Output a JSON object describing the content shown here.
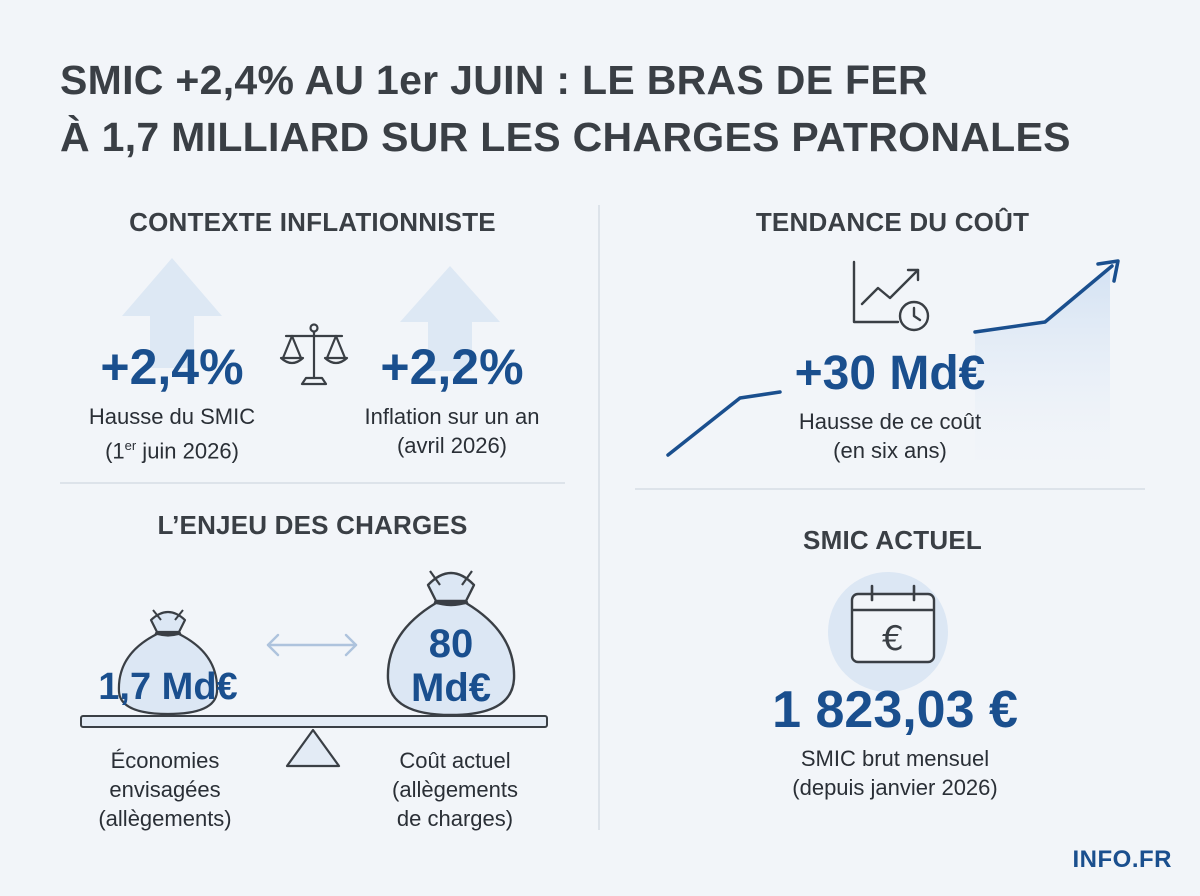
{
  "title": {
    "line1": "SMIC +2,4% AU 1er JUIN : LE BRAS DE FER",
    "line2": "À 1,7 MILLIARD SUR LES CHARGES PATRONALES"
  },
  "contexte": {
    "heading": "CONTEXTE INFLATIONNISTE",
    "smic": {
      "value": "+2,4%",
      "label1": "Hausse du SMIC",
      "label2_pre": "(1",
      "label2_sup": "er",
      "label2_post": " juin 2026)"
    },
    "inflation": {
      "value": "+2,2%",
      "label1": "Inflation sur un an",
      "label2": "(avril 2026)"
    }
  },
  "tendance": {
    "heading": "TENDANCE DU COÛT",
    "value": "+30 Md€",
    "label1": "Hausse de ce coût",
    "label2": "(en six ans)"
  },
  "enjeu": {
    "heading": "L’ENJEU DES CHARGES",
    "economies": {
      "value": "1,7 Md€",
      "label1": "Économies",
      "label2": "envisagées",
      "label3": "(allègements)"
    },
    "cout": {
      "value1": "80",
      "value2": "Md€",
      "label1": "Coût actuel",
      "label2": "(allègements",
      "label3": "de charges)"
    }
  },
  "smic_actuel": {
    "heading": "SMIC ACTUEL",
    "value": "1 823,03 €",
    "label1": "SMIC brut mensuel",
    "label2": "(depuis janvier 2026)",
    "icon_symbol": "€"
  },
  "brand": "INFO.FR",
  "colors": {
    "accent": "#1a4f8e",
    "light_blue": "#dbe7f5",
    "text": "#2a2f36"
  }
}
